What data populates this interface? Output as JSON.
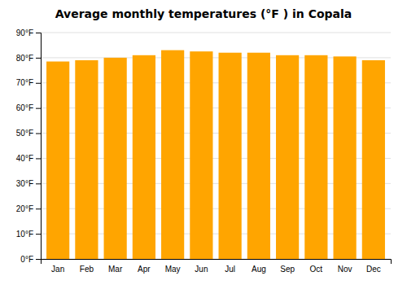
{
  "chart_data": {
    "type": "bar",
    "title": "Average monthly temperatures (°F ) in Copala",
    "categories": [
      "Jan",
      "Feb",
      "Mar",
      "Apr",
      "May",
      "Jun",
      "Jul",
      "Aug",
      "Sep",
      "Oct",
      "Nov",
      "Dec"
    ],
    "values": [
      78.5,
      79.0,
      80.0,
      81.0,
      83.0,
      82.5,
      82.0,
      82.0,
      81.0,
      81.0,
      80.5,
      79.0
    ],
    "color": "#FFA500",
    "ylim": [
      0,
      90
    ],
    "yticks": [
      {
        "value": 0,
        "label": "0°F"
      },
      {
        "value": 10,
        "label": "10°F"
      },
      {
        "value": 20,
        "label": "20°F"
      },
      {
        "value": 30,
        "label": "30°F"
      },
      {
        "value": 40,
        "label": "40°F"
      },
      {
        "value": 50,
        "label": "50°F"
      },
      {
        "value": 60,
        "label": "60°F"
      },
      {
        "value": 70,
        "label": "70°F"
      },
      {
        "value": 80,
        "label": "80°F"
      },
      {
        "value": 90,
        "label": "90°F"
      }
    ],
    "grid": true
  }
}
